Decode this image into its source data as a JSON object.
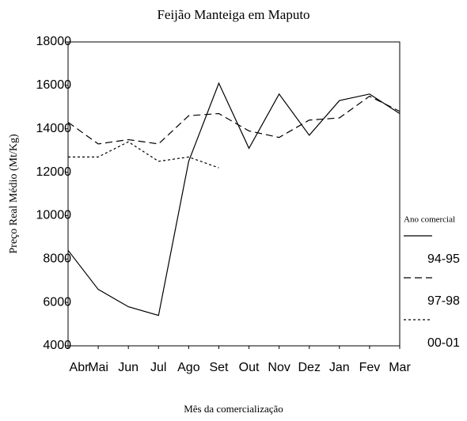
{
  "chart_data": {
    "type": "line",
    "title": "Feijão Manteiga em Maputo",
    "x_label": "Mês da comercialização",
    "y_label": "Preço Real Médio (Mt/Kg)",
    "legend_title": "Ano comercial",
    "legend_position": "right",
    "categories": [
      "Abr",
      "Mai",
      "Jun",
      "Jul",
      "Ago",
      "Set",
      "Out",
      "Nov",
      "Dez",
      "Jan",
      "Fev",
      "Mar"
    ],
    "series": [
      {
        "name": "94-95",
        "color": "#000000",
        "line_style": "solid",
        "values": [
          8400,
          6600,
          5800,
          5400,
          12500,
          16100,
          13100,
          15600,
          13700,
          15300,
          15600,
          14700
        ]
      },
      {
        "name": "97-98",
        "color": "#000000",
        "line_style": "dashed",
        "values": [
          14300,
          13300,
          13500,
          13300,
          14600,
          14700,
          13900,
          13600,
          14400,
          14500,
          15500,
          14800
        ]
      },
      {
        "name": "00-01",
        "color": "#000000",
        "line_style": "dotted",
        "values": [
          12700,
          12700,
          13400,
          12500,
          12700,
          12200,
          null,
          null,
          null,
          null,
          null,
          null
        ]
      }
    ],
    "ylim": [
      4000,
      18000
    ],
    "yticks": [
      4000,
      6000,
      8000,
      10000,
      12000,
      14000,
      16000,
      18000
    ]
  }
}
